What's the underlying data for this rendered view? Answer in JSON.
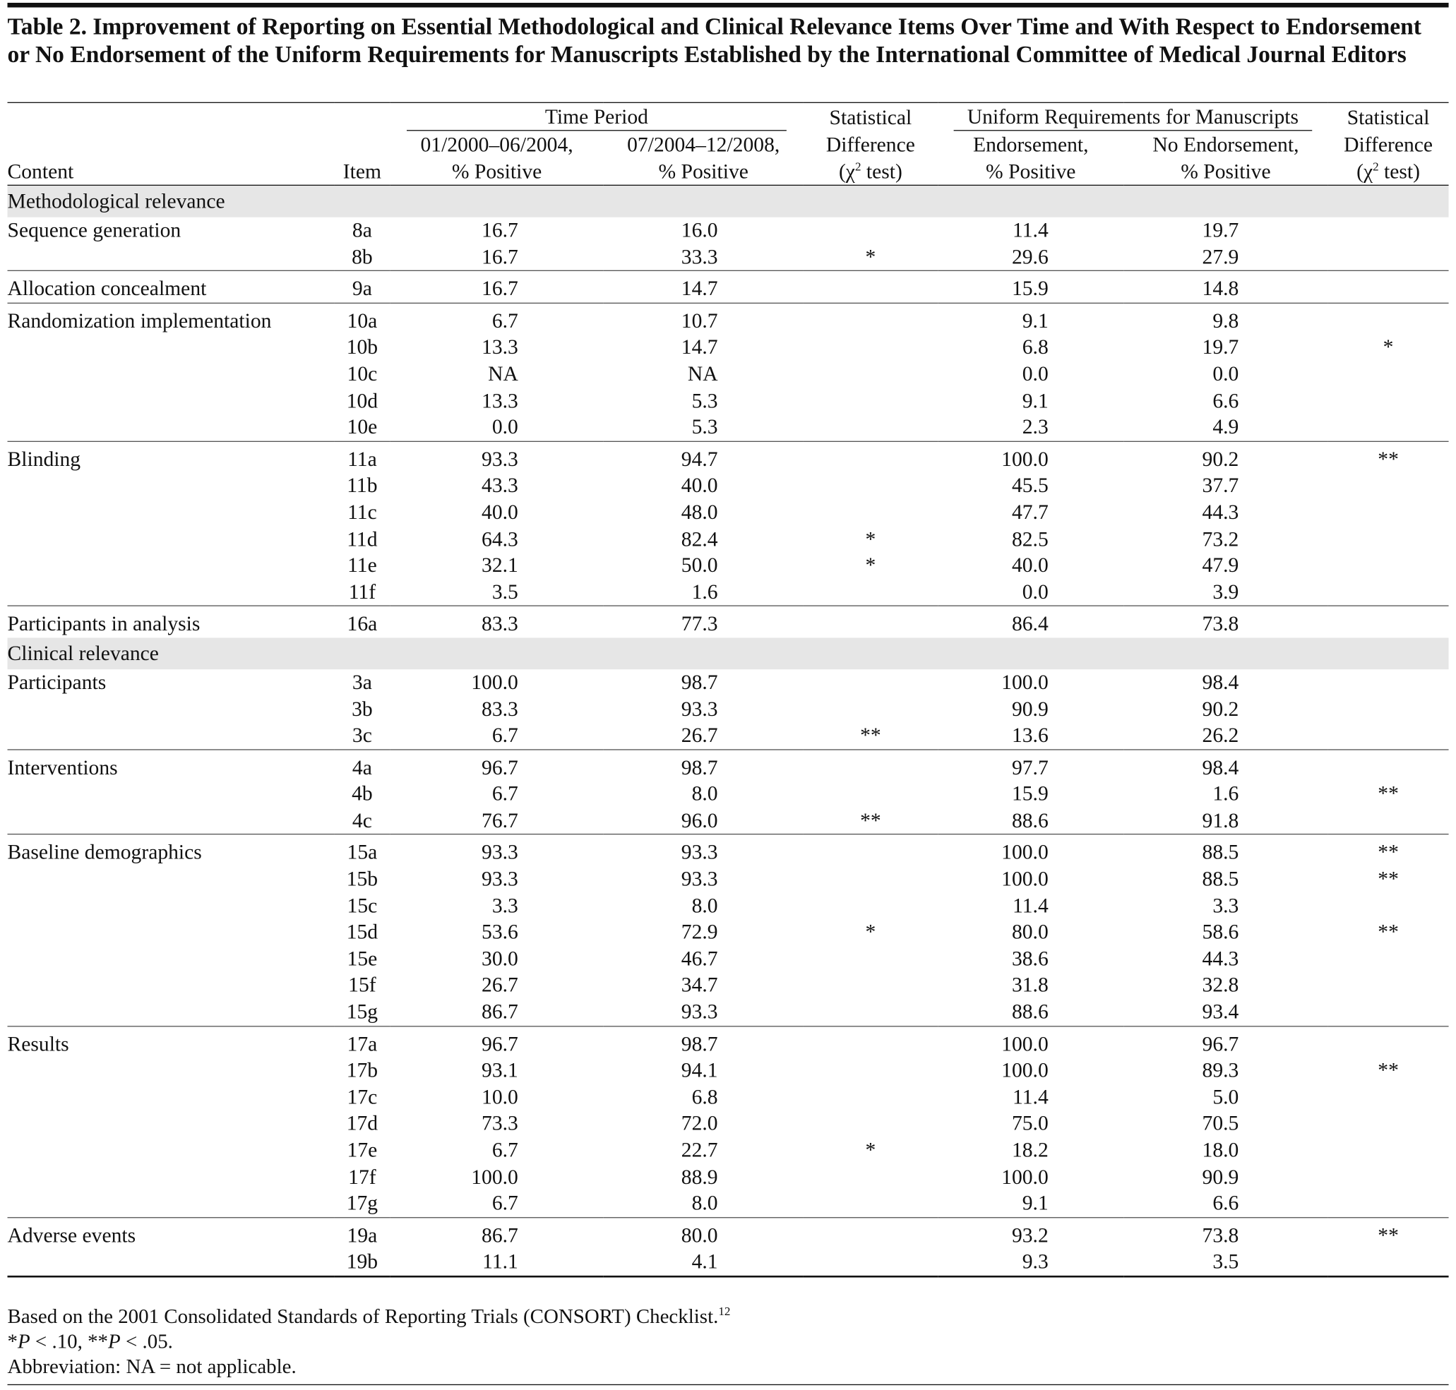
{
  "title": "Table 2. Improvement of Reporting on Essential Methodological and Clinical Relevance Items Over Time and With Respect to Endorsement or No Endorsement of the Uniform Requirements for Manuscripts Established by the International Committee of Medical Journal Editors",
  "header": {
    "content": "Content",
    "item": "Item",
    "time_period": {
      "label": "Time Period",
      "columns": [
        [
          "01/2000–06/2004,",
          "% Positive"
        ],
        [
          "07/2004–12/2008,",
          "% Positive"
        ]
      ]
    },
    "statistical_difference": {
      "lines": [
        "Statistical",
        "Difference"
      ],
      "chi": "(χ",
      "sup": "2",
      "test": " test)"
    },
    "uniform_requirements": {
      "label": "Uniform Requirements for Manuscripts",
      "columns": [
        [
          "Endorsement,",
          "% Positive"
        ],
        [
          "No Endorsement,",
          "% Positive"
        ]
      ]
    }
  },
  "sections": [
    {
      "label": "Methodological relevance",
      "groups": [
        {
          "content": "Sequence generation",
          "rows": [
            [
              "8a",
              "16.7",
              "16.0",
              null,
              "11.4",
              "19.7",
              null
            ],
            [
              "8b",
              "16.7",
              "33.3",
              "*",
              "29.6",
              "27.9",
              null
            ]
          ]
        },
        {
          "content": "Allocation concealment",
          "rows": [
            [
              "9a",
              "16.7",
              "14.7",
              null,
              "15.9",
              "14.8",
              null
            ]
          ]
        },
        {
          "content": "Randomization implementation",
          "rows": [
            [
              "10a",
              "6.7",
              "10.7",
              null,
              "9.1",
              "9.8",
              null
            ],
            [
              "10b",
              "13.3",
              "14.7",
              null,
              "6.8",
              "19.7",
              "*"
            ],
            [
              "10c",
              "NA",
              "NA",
              null,
              "0.0",
              "0.0",
              null
            ],
            [
              "10d",
              "13.3",
              "5.3",
              null,
              "9.1",
              "6.6",
              null
            ],
            [
              "10e",
              "0.0",
              "5.3",
              null,
              "2.3",
              "4.9",
              null
            ]
          ]
        },
        {
          "content": "Blinding",
          "rows": [
            [
              "11a",
              "93.3",
              "94.7",
              null,
              "100.0",
              "90.2",
              "**"
            ],
            [
              "11b",
              "43.3",
              "40.0",
              null,
              "45.5",
              "37.7",
              null
            ],
            [
              "11c",
              "40.0",
              "48.0",
              null,
              "47.7",
              "44.3",
              null
            ],
            [
              "11d",
              "64.3",
              "82.4",
              "*",
              "82.5",
              "73.2",
              null
            ],
            [
              "11e",
              "32.1",
              "50.0",
              "*",
              "40.0",
              "47.9",
              null
            ],
            [
              "11f",
              "3.5",
              "1.6",
              null,
              "0.0",
              "3.9",
              null
            ]
          ]
        },
        {
          "content": "Participants in analysis",
          "rows": [
            [
              "16a",
              "83.3",
              "77.3",
              null,
              "86.4",
              "73.8",
              null
            ]
          ]
        }
      ]
    },
    {
      "label": "Clinical relevance",
      "groups": [
        {
          "content": "Participants",
          "rows": [
            [
              "3a",
              "100.0",
              "98.7",
              null,
              "100.0",
              "98.4",
              null
            ],
            [
              "3b",
              "83.3",
              "93.3",
              null,
              "90.9",
              "90.2",
              null
            ],
            [
              "3c",
              "6.7",
              "26.7",
              "**",
              "13.6",
              "26.2",
              null
            ]
          ]
        },
        {
          "content": "Interventions",
          "rows": [
            [
              "4a",
              "96.7",
              "98.7",
              null,
              "97.7",
              "98.4",
              null
            ],
            [
              "4b",
              "6.7",
              "8.0",
              null,
              "15.9",
              "1.6",
              "**"
            ],
            [
              "4c",
              "76.7",
              "96.0",
              "**",
              "88.6",
              "91.8",
              null
            ]
          ]
        },
        {
          "content": "Baseline demographics",
          "rows": [
            [
              "15a",
              "93.3",
              "93.3",
              null,
              "100.0",
              "88.5",
              "**"
            ],
            [
              "15b",
              "93.3",
              "93.3",
              null,
              "100.0",
              "88.5",
              "**"
            ],
            [
              "15c",
              "3.3",
              "8.0",
              null,
              "11.4",
              "3.3",
              null
            ],
            [
              "15d",
              "53.6",
              "72.9",
              "*",
              "80.0",
              "58.6",
              "**"
            ],
            [
              "15e",
              "30.0",
              "46.7",
              null,
              "38.6",
              "44.3",
              null
            ],
            [
              "15f",
              "26.7",
              "34.7",
              null,
              "31.8",
              "32.8",
              null
            ],
            [
              "15g",
              "86.7",
              "93.3",
              null,
              "88.6",
              "93.4",
              null
            ]
          ]
        },
        {
          "content": "Results",
          "rows": [
            [
              "17a",
              "96.7",
              "98.7",
              null,
              "100.0",
              "96.7",
              null
            ],
            [
              "17b",
              "93.1",
              "94.1",
              null,
              "100.0",
              "89.3",
              "**"
            ],
            [
              "17c",
              "10.0",
              "6.8",
              null,
              "11.4",
              "5.0",
              null
            ],
            [
              "17d",
              "73.3",
              "72.0",
              null,
              "75.0",
              "70.5",
              null
            ],
            [
              "17e",
              "6.7",
              "22.7",
              "*",
              "18.2",
              "18.0",
              null
            ],
            [
              "17f",
              "100.0",
              "88.9",
              null,
              "100.0",
              "90.9",
              null
            ],
            [
              "17g",
              "6.7",
              "8.0",
              null,
              "9.1",
              "6.6",
              null
            ]
          ]
        },
        {
          "content": "Adverse events",
          "rows": [
            [
              "19a",
              "86.7",
              "80.0",
              null,
              "93.2",
              "73.8",
              "**"
            ],
            [
              "19b",
              "11.1",
              "4.1",
              null,
              "9.3",
              "3.5",
              null
            ]
          ]
        }
      ]
    }
  ],
  "footnotes": [
    {
      "text": "Based on the 2001 Consolidated Standards of Reporting Trials (CONSORT) Checklist.",
      "sup": "12"
    },
    {
      "parts": [
        "*",
        "P",
        " < .10, **",
        "P",
        " < .05."
      ]
    },
    {
      "text": "Abbreviation: NA = not applicable."
    }
  ]
}
